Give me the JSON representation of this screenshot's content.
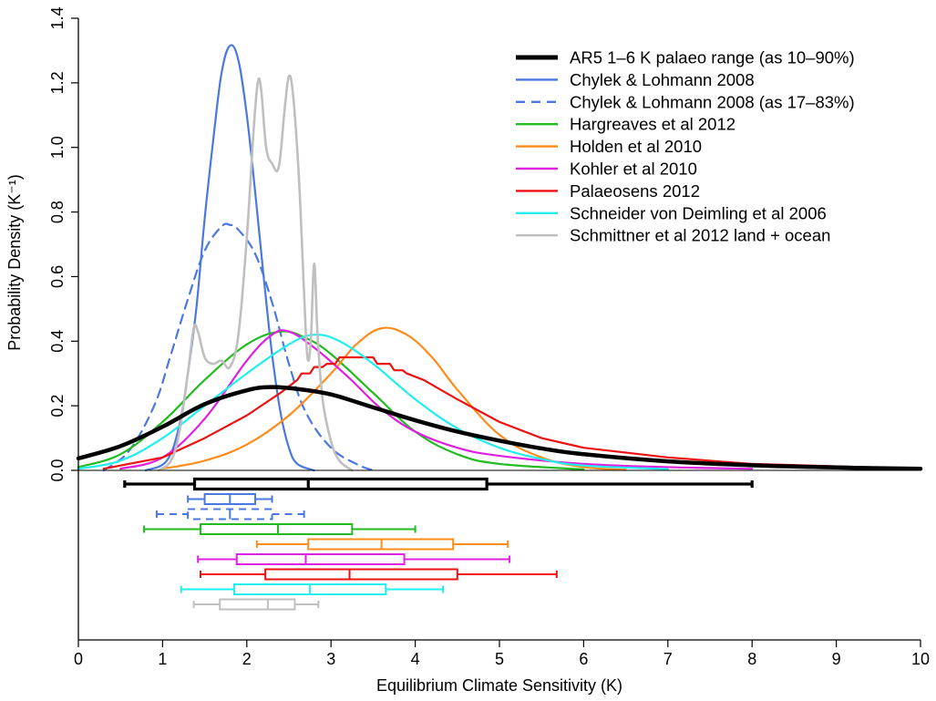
{
  "chart_data": {
    "type": "line",
    "xlabel": "Equilibrium Climate Sensitivity (K)",
    "ylabel": "Probability Density (K⁻¹)",
    "xlim": [
      0,
      10
    ],
    "ylim": [
      0,
      1.4
    ],
    "xticks": [
      "0",
      "1",
      "2",
      "3",
      "4",
      "5",
      "6",
      "7",
      "8",
      "9",
      "10"
    ],
    "yticks": [
      "0.0",
      "0.2",
      "0.4",
      "0.6",
      "0.8",
      "1.0",
      "1.2",
      "1.4"
    ],
    "grid": false,
    "legend_position": "top-right",
    "series": [
      {
        "name": "AR5 1–6 K palaeo range (as 10–90%)",
        "color": "#000000",
        "dash": false,
        "width": 4.5,
        "points": [
          [
            0,
            0.037
          ],
          [
            0.5,
            0.075
          ],
          [
            1,
            0.135
          ],
          [
            1.5,
            0.205
          ],
          [
            2,
            0.248
          ],
          [
            2.3,
            0.258
          ],
          [
            2.6,
            0.252
          ],
          [
            3,
            0.235
          ],
          [
            3.5,
            0.195
          ],
          [
            4,
            0.155
          ],
          [
            4.5,
            0.12
          ],
          [
            5,
            0.092
          ],
          [
            5.5,
            0.068
          ],
          [
            6,
            0.05
          ],
          [
            7,
            0.028
          ],
          [
            8,
            0.016
          ],
          [
            9,
            0.009
          ],
          [
            10,
            0.005
          ]
        ],
        "box": {
          "whisker_low": 0.55,
          "q1": 1.38,
          "median": 2.73,
          "q3": 4.85,
          "whisker_high": 8.0
        }
      },
      {
        "name": "Chylek & Lohmann 2008",
        "color": "#4a78e0",
        "dash": false,
        "width": 2.2,
        "points": [
          [
            0.8,
            0
          ],
          [
            1.05,
            0.03
          ],
          [
            1.2,
            0.14
          ],
          [
            1.3,
            0.3
          ],
          [
            1.4,
            0.5
          ],
          [
            1.5,
            0.78
          ],
          [
            1.6,
            1.02
          ],
          [
            1.7,
            1.23
          ],
          [
            1.8,
            1.315
          ],
          [
            1.9,
            1.27
          ],
          [
            2.0,
            1.1
          ],
          [
            2.1,
            0.86
          ],
          [
            2.2,
            0.6
          ],
          [
            2.3,
            0.36
          ],
          [
            2.4,
            0.18
          ],
          [
            2.5,
            0.07
          ],
          [
            2.6,
            0.02
          ],
          [
            2.8,
            0
          ]
        ],
        "box": {
          "whisker_low": 1.3,
          "q1": 1.5,
          "median": 1.8,
          "q3": 2.1,
          "whisker_high": 2.3
        }
      },
      {
        "name": "Chylek & Lohmann 2008 (as 17–83%)",
        "color": "#4a78e0",
        "dash": true,
        "width": 2.2,
        "points": [
          [
            0.3,
            0
          ],
          [
            0.6,
            0.06
          ],
          [
            0.9,
            0.2
          ],
          [
            1.1,
            0.36
          ],
          [
            1.3,
            0.53
          ],
          [
            1.5,
            0.68
          ],
          [
            1.7,
            0.755
          ],
          [
            1.8,
            0.76
          ],
          [
            1.9,
            0.745
          ],
          [
            2.1,
            0.67
          ],
          [
            2.3,
            0.52
          ],
          [
            2.5,
            0.33
          ],
          [
            2.7,
            0.18
          ],
          [
            3.0,
            0.07
          ],
          [
            3.3,
            0.02
          ],
          [
            3.5,
            0
          ]
        ],
        "box": {
          "whisker_low": 0.93,
          "q1": 1.3,
          "median": 1.8,
          "q3": 2.3,
          "whisker_high": 2.68
        }
      },
      {
        "name": "Hargreaves et al 2012",
        "color": "#22bb22",
        "dash": false,
        "width": 2.2,
        "points": [
          [
            0,
            0.01
          ],
          [
            0.5,
            0.05
          ],
          [
            1,
            0.15
          ],
          [
            1.5,
            0.28
          ],
          [
            2,
            0.39
          ],
          [
            2.4,
            0.43
          ],
          [
            2.7,
            0.41
          ],
          [
            3,
            0.36
          ],
          [
            3.5,
            0.24
          ],
          [
            4,
            0.12
          ],
          [
            4.5,
            0.05
          ],
          [
            5,
            0.02
          ],
          [
            6,
            0.003
          ]
        ],
        "box": {
          "whisker_low": 0.78,
          "q1": 1.45,
          "median": 2.37,
          "q3": 3.25,
          "whisker_high": 4.0
        }
      },
      {
        "name": "Holden et al 2010",
        "color": "#ff8c1a",
        "dash": false,
        "width": 2.2,
        "points": [
          [
            1,
            0.005
          ],
          [
            1.5,
            0.03
          ],
          [
            2,
            0.08
          ],
          [
            2.5,
            0.17
          ],
          [
            3,
            0.3
          ],
          [
            3.3,
            0.39
          ],
          [
            3.6,
            0.44
          ],
          [
            3.9,
            0.42
          ],
          [
            4.2,
            0.35
          ],
          [
            4.5,
            0.25
          ],
          [
            5,
            0.11
          ],
          [
            5.5,
            0.04
          ],
          [
            6,
            0.01
          ],
          [
            6.5,
            0.002
          ]
        ],
        "box": {
          "whisker_low": 2.12,
          "q1": 2.73,
          "median": 3.6,
          "q3": 4.45,
          "whisker_high": 5.1
        }
      },
      {
        "name": "Kohler et al 2010",
        "color": "#e020e0",
        "dash": false,
        "width": 2.2,
        "points": [
          [
            0.5,
            0.005
          ],
          [
            1,
            0.04
          ],
          [
            1.5,
            0.16
          ],
          [
            2,
            0.34
          ],
          [
            2.3,
            0.42
          ],
          [
            2.5,
            0.43
          ],
          [
            2.8,
            0.38
          ],
          [
            3.2,
            0.29
          ],
          [
            3.6,
            0.19
          ],
          [
            4,
            0.12
          ],
          [
            4.5,
            0.07
          ],
          [
            5,
            0.045
          ],
          [
            6,
            0.02
          ],
          [
            7,
            0.01
          ],
          [
            8,
            0.005
          ]
        ],
        "box": {
          "whisker_low": 1.42,
          "q1": 1.88,
          "median": 2.7,
          "q3": 3.87,
          "whisker_high": 5.12
        }
      },
      {
        "name": "Palaeosens 2012",
        "color": "#ee1111",
        "dash": false,
        "width": 2.2,
        "points": [
          [
            0.3,
            0.005
          ],
          [
            1,
            0.04
          ],
          [
            1.5,
            0.1
          ],
          [
            2,
            0.17
          ],
          [
            2.4,
            0.24
          ],
          [
            2.6,
            0.28
          ],
          [
            2.65,
            0.3
          ],
          [
            2.75,
            0.3
          ],
          [
            2.8,
            0.32
          ],
          [
            2.9,
            0.32
          ],
          [
            2.95,
            0.33
          ],
          [
            3.05,
            0.33
          ],
          [
            3.1,
            0.35
          ],
          [
            3.5,
            0.35
          ],
          [
            3.55,
            0.33
          ],
          [
            3.7,
            0.33
          ],
          [
            3.75,
            0.31
          ],
          [
            3.85,
            0.31
          ],
          [
            3.9,
            0.3
          ],
          [
            4.1,
            0.28
          ],
          [
            4.5,
            0.22
          ],
          [
            5,
            0.15
          ],
          [
            5.5,
            0.1
          ],
          [
            6,
            0.07
          ],
          [
            7,
            0.04
          ],
          [
            8,
            0.02
          ],
          [
            10,
            0.005
          ]
        ],
        "box": {
          "whisker_low": 1.45,
          "q1": 2.22,
          "median": 3.22,
          "q3": 4.5,
          "whisker_high": 5.68
        }
      },
      {
        "name": "Schneider von Deimling et al 2006",
        "color": "#22eeee",
        "dash": false,
        "width": 2.2,
        "points": [
          [
            0,
            0.005
          ],
          [
            0.5,
            0.03
          ],
          [
            1,
            0.1
          ],
          [
            1.5,
            0.2
          ],
          [
            2,
            0.3
          ],
          [
            2.5,
            0.39
          ],
          [
            2.8,
            0.42
          ],
          [
            3.1,
            0.4
          ],
          [
            3.5,
            0.33
          ],
          [
            4,
            0.22
          ],
          [
            4.5,
            0.13
          ],
          [
            5,
            0.07
          ],
          [
            5.5,
            0.035
          ],
          [
            6,
            0.015
          ],
          [
            7,
            0.004
          ]
        ],
        "box": {
          "whisker_low": 1.22,
          "q1": 1.85,
          "median": 2.75,
          "q3": 3.65,
          "whisker_high": 4.33
        }
      },
      {
        "name": "Schmittner et al 2012 land + ocean",
        "color": "#bfbfbf",
        "dash": false,
        "width": 2.6,
        "points": [
          [
            0.95,
            0
          ],
          [
            1.1,
            0.03
          ],
          [
            1.2,
            0.12
          ],
          [
            1.3,
            0.3
          ],
          [
            1.37,
            0.44
          ],
          [
            1.42,
            0.43
          ],
          [
            1.5,
            0.35
          ],
          [
            1.6,
            0.33
          ],
          [
            1.7,
            0.34
          ],
          [
            1.8,
            0.32
          ],
          [
            1.9,
            0.42
          ],
          [
            2.0,
            0.72
          ],
          [
            2.08,
            1.05
          ],
          [
            2.13,
            1.2
          ],
          [
            2.17,
            1.18
          ],
          [
            2.23,
            1.0
          ],
          [
            2.3,
            0.95
          ],
          [
            2.38,
            0.94
          ],
          [
            2.45,
            1.12
          ],
          [
            2.5,
            1.22
          ],
          [
            2.55,
            1.16
          ],
          [
            2.62,
            0.9
          ],
          [
            2.68,
            0.55
          ],
          [
            2.72,
            0.35
          ],
          [
            2.76,
            0.4
          ],
          [
            2.8,
            0.64
          ],
          [
            2.84,
            0.42
          ],
          [
            2.9,
            0.22
          ],
          [
            3.0,
            0.09
          ],
          [
            3.1,
            0.03
          ],
          [
            3.25,
            0
          ]
        ],
        "box": {
          "whisker_low": 1.37,
          "q1": 1.68,
          "median": 2.25,
          "q3": 2.57,
          "whisker_high": 2.85
        }
      }
    ]
  }
}
